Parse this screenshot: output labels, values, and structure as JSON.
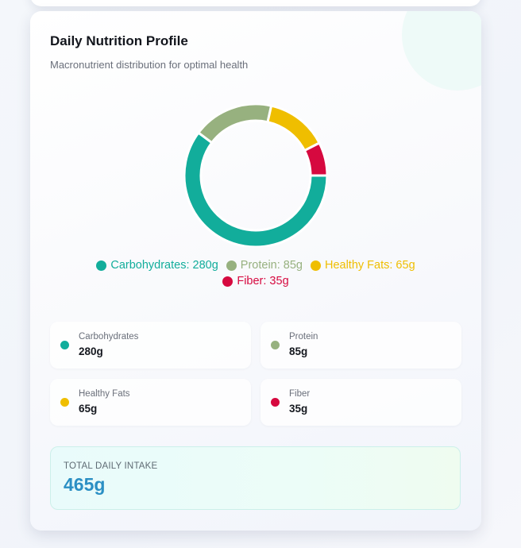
{
  "card": {
    "title": "Daily Nutrition Profile",
    "subtitle": "Macronutrient distribution for optimal health"
  },
  "chart_data": {
    "type": "pie",
    "title": "Daily Nutrition Profile",
    "subtitle": "Macronutrient distribution for optimal health",
    "legend_placement": "bottom",
    "categories": [
      "Carbohydrates",
      "Protein",
      "Healthy Fats",
      "Fiber"
    ],
    "values": [
      280,
      85,
      65,
      35
    ],
    "unit": "g",
    "colors": [
      "#12ad9b",
      "#97b17f",
      "#efbe00",
      "#d6093f"
    ],
    "legend_labels": [
      "Carbohydrates: 280g",
      "Protein: 85g",
      "Healthy Fats: 65g",
      "Fiber: 35g"
    ]
  },
  "stats": [
    {
      "label": "Carbohydrates",
      "value": "280g",
      "color": "#12ad9b"
    },
    {
      "label": "Protein",
      "value": "85g",
      "color": "#97b17f"
    },
    {
      "label": "Healthy Fats",
      "value": "65g",
      "color": "#efbe00"
    },
    {
      "label": "Fiber",
      "value": "35g",
      "color": "#d6093f"
    }
  ],
  "total": {
    "label": "TOTAL DAILY INTAKE",
    "value": "465g"
  }
}
